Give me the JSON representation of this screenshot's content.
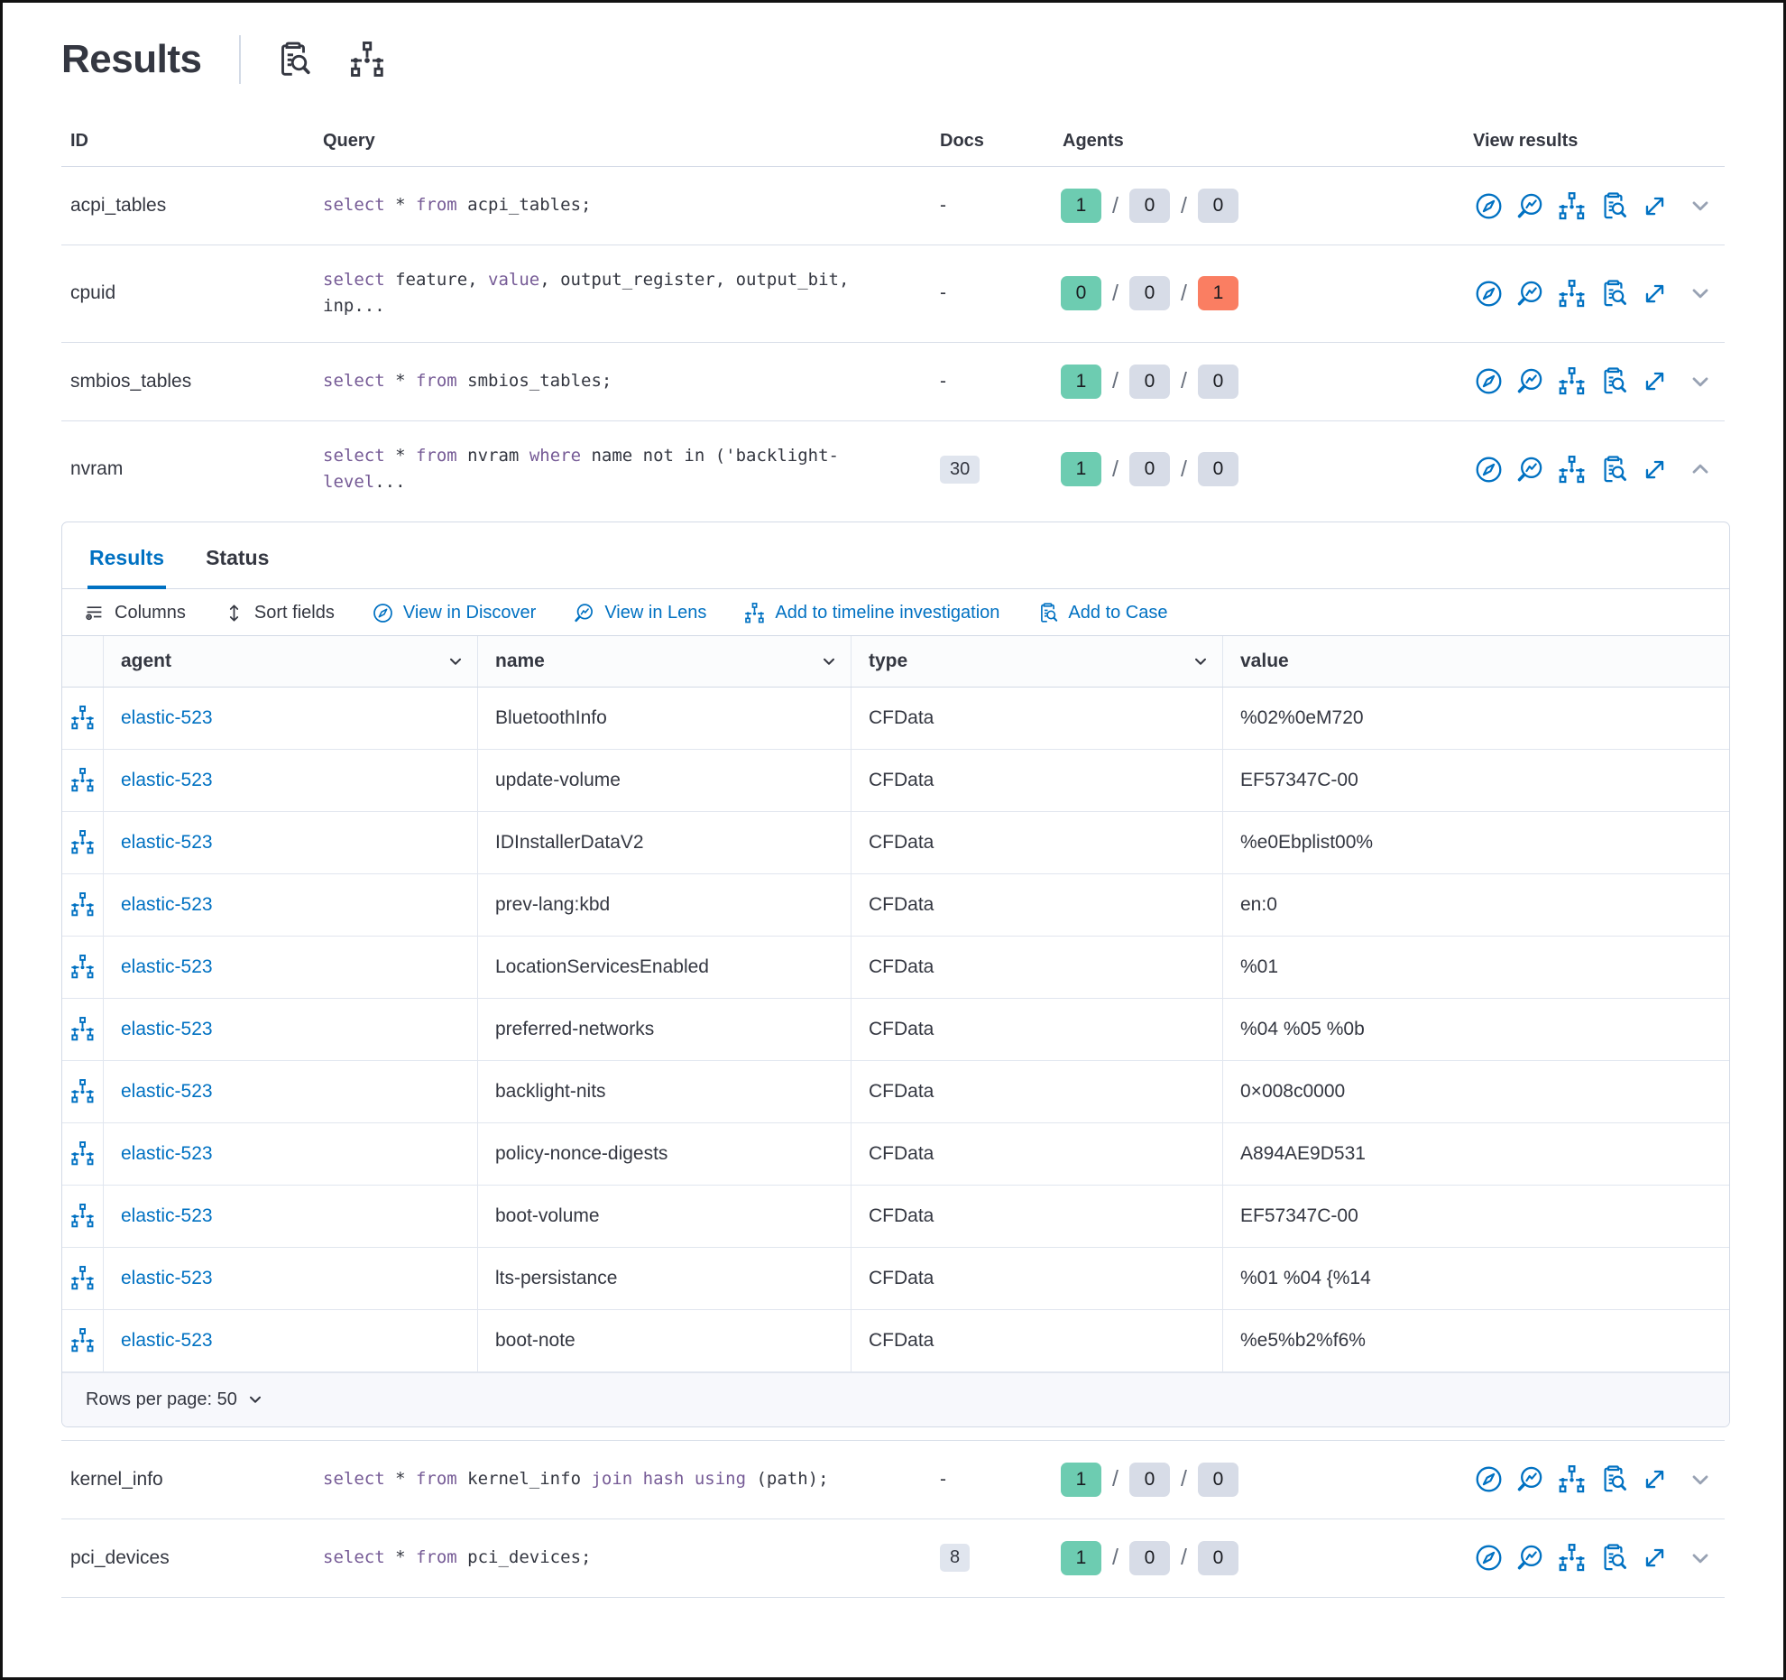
{
  "page": {
    "title": "Results"
  },
  "colors": {
    "text": "#343741",
    "link": "#0071C2",
    "keyword": "#765B96",
    "badge_success": "#6DCCB1",
    "badge_neutral": "#D7DCE7",
    "badge_danger": "#FA7E62",
    "docs_badge_bg": "#E0E5EE",
    "border": "#D3DAE6"
  },
  "header_icons": [
    {
      "name": "inspect-icon"
    },
    {
      "name": "timeline-icon"
    }
  ],
  "queries_table": {
    "columns": {
      "id": "ID",
      "query": "Query",
      "docs": "Docs",
      "agents": "Agents",
      "view": "View results"
    },
    "view_icons": [
      "discover",
      "lens",
      "timeline",
      "inspect",
      "expand"
    ],
    "rows": [
      {
        "id": "acpi_tables",
        "query": [
          {
            "t": "select",
            "kw": true
          },
          {
            "t": " * ",
            "kw": false
          },
          {
            "t": "from",
            "kw": true
          },
          {
            "t": " acpi_tables;",
            "kw": false
          }
        ],
        "docs": "-",
        "docs_badge": false,
        "agents": [
          {
            "count": "1",
            "status": "success"
          },
          {
            "count": "0",
            "status": "neutral"
          },
          {
            "count": "0",
            "status": "neutral"
          }
        ],
        "expanded": false
      },
      {
        "id": "cpuid",
        "query": [
          {
            "t": "select",
            "kw": true
          },
          {
            "t": " feature, ",
            "kw": false
          },
          {
            "t": "value",
            "kw": true
          },
          {
            "t": ", output_register, output_bit, inp...",
            "kw": false
          }
        ],
        "docs": "-",
        "docs_badge": false,
        "agents": [
          {
            "count": "0",
            "status": "success"
          },
          {
            "count": "0",
            "status": "neutral"
          },
          {
            "count": "1",
            "status": "danger"
          }
        ],
        "expanded": false
      },
      {
        "id": "smbios_tables",
        "query": [
          {
            "t": "select",
            "kw": true
          },
          {
            "t": " * ",
            "kw": false
          },
          {
            "t": "from",
            "kw": true
          },
          {
            "t": " smbios_tables;",
            "kw": false
          }
        ],
        "docs": "-",
        "docs_badge": false,
        "agents": [
          {
            "count": "1",
            "status": "success"
          },
          {
            "count": "0",
            "status": "neutral"
          },
          {
            "count": "0",
            "status": "neutral"
          }
        ],
        "expanded": false
      },
      {
        "id": "nvram",
        "query": [
          {
            "t": "select",
            "kw": true
          },
          {
            "t": " * ",
            "kw": false
          },
          {
            "t": "from",
            "kw": true
          },
          {
            "t": " nvram ",
            "kw": false
          },
          {
            "t": "where",
            "kw": true
          },
          {
            "t": " name not in ('backlight-",
            "kw": false
          },
          {
            "t": "level",
            "kw": true
          },
          {
            "t": "...",
            "kw": false
          }
        ],
        "docs": "30",
        "docs_badge": true,
        "agents": [
          {
            "count": "1",
            "status": "success"
          },
          {
            "count": "0",
            "status": "neutral"
          },
          {
            "count": "0",
            "status": "neutral"
          }
        ],
        "expanded": true
      },
      {
        "id": "kernel_info",
        "query": [
          {
            "t": "select",
            "kw": true
          },
          {
            "t": " * ",
            "kw": false
          },
          {
            "t": "from",
            "kw": true
          },
          {
            "t": " kernel_info ",
            "kw": false
          },
          {
            "t": "join hash using",
            "kw": true
          },
          {
            "t": " (path);",
            "kw": false
          }
        ],
        "docs": "-",
        "docs_badge": false,
        "agents": [
          {
            "count": "1",
            "status": "success"
          },
          {
            "count": "0",
            "status": "neutral"
          },
          {
            "count": "0",
            "status": "neutral"
          }
        ],
        "expanded": false
      },
      {
        "id": "pci_devices",
        "query": [
          {
            "t": "select",
            "kw": true
          },
          {
            "t": " * ",
            "kw": false
          },
          {
            "t": "from",
            "kw": true
          },
          {
            "t": " pci_devices;",
            "kw": false
          }
        ],
        "docs": "8",
        "docs_badge": true,
        "agents": [
          {
            "count": "1",
            "status": "success"
          },
          {
            "count": "0",
            "status": "neutral"
          },
          {
            "count": "0",
            "status": "neutral"
          }
        ],
        "expanded": false
      }
    ]
  },
  "expanded_panel": {
    "tabs": [
      {
        "label": "Results",
        "active": true
      },
      {
        "label": "Status",
        "active": false
      }
    ],
    "toolbar": [
      {
        "label": "Columns",
        "icon": "columns",
        "link": false
      },
      {
        "label": "Sort fields",
        "icon": "sort",
        "link": false
      },
      {
        "label": "View in Discover",
        "icon": "discover",
        "link": true
      },
      {
        "label": "View in Lens",
        "icon": "lens",
        "link": true
      },
      {
        "label": "Add to timeline investigation",
        "icon": "timeline",
        "link": true
      },
      {
        "label": "Add to Case",
        "icon": "inspect",
        "link": true
      }
    ],
    "grid": {
      "columns": [
        {
          "label": "agent",
          "sortable": true
        },
        {
          "label": "name",
          "sortable": true
        },
        {
          "label": "type",
          "sortable": true
        },
        {
          "label": "value",
          "sortable": false
        }
      ],
      "rows": [
        {
          "agent": "elastic-523",
          "name": "BluetoothInfo",
          "type": "CFData",
          "value": "%02%0eM720"
        },
        {
          "agent": "elastic-523",
          "name": "update-volume",
          "type": "CFData",
          "value": "EF57347C-00"
        },
        {
          "agent": "elastic-523",
          "name": "IDInstallerDataV2",
          "type": "CFData",
          "value": "%e0Ebplist00%"
        },
        {
          "agent": "elastic-523",
          "name": "prev-lang:kbd",
          "type": "CFData",
          "value": "en:0"
        },
        {
          "agent": "elastic-523",
          "name": "LocationServicesEnabled",
          "type": "CFData",
          "value": "%01"
        },
        {
          "agent": "elastic-523",
          "name": "preferred-networks",
          "type": "CFData",
          "value": "%04 %05 %0b"
        },
        {
          "agent": "elastic-523",
          "name": "backlight-nits",
          "type": "CFData",
          "value": "0×008c0000"
        },
        {
          "agent": "elastic-523",
          "name": "policy-nonce-digests",
          "type": "CFData",
          "value": "A894AE9D531"
        },
        {
          "agent": "elastic-523",
          "name": "boot-volume",
          "type": "CFData",
          "value": "EF57347C-00"
        },
        {
          "agent": "elastic-523",
          "name": "lts-persistance",
          "type": "CFData",
          "value": "%01 %04 {%14"
        },
        {
          "agent": "elastic-523",
          "name": "boot-note",
          "type": "CFData",
          "value": "%e5%b2%f6%"
        }
      ],
      "footer": {
        "rows_per_page": "Rows per page: 50"
      }
    }
  }
}
